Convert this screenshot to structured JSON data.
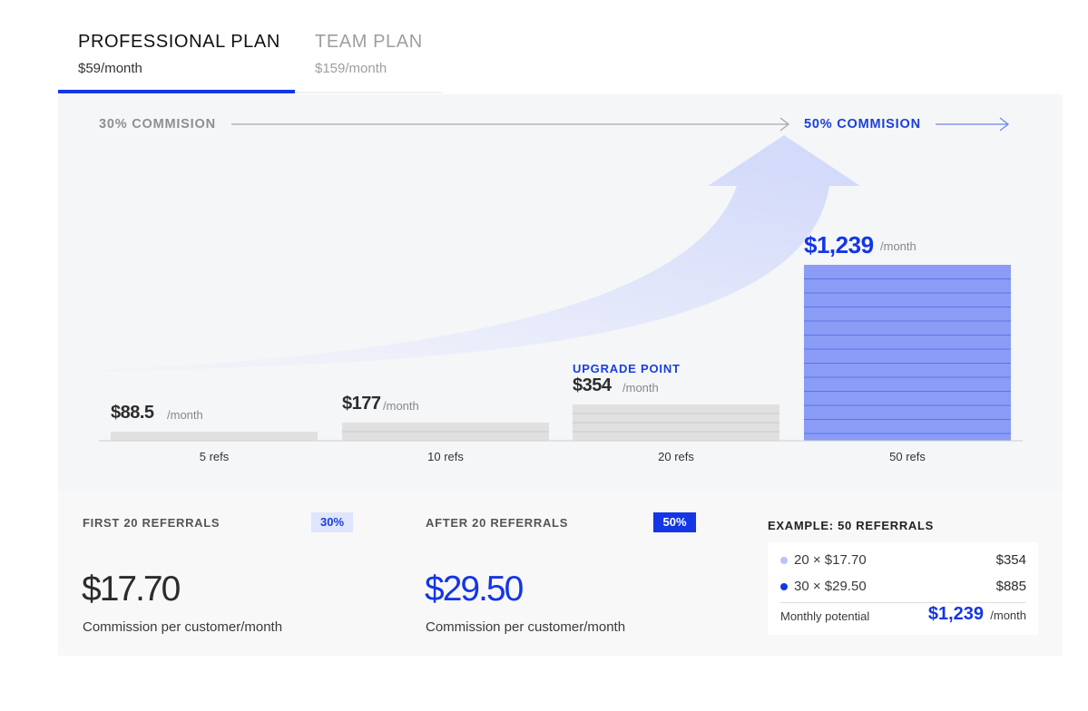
{
  "tabs": [
    {
      "title": "PROFESSIONAL PLAN",
      "price": "$59/month",
      "active": true
    },
    {
      "title": "TEAM PLAN",
      "price": "$159/month",
      "active": false
    }
  ],
  "chart": {
    "commission_start": "30% COMMISION",
    "commission_end": "50% COMMISION",
    "upgrade_label": "UPGRADE POINT",
    "unit": "/month",
    "colors": {
      "accent": "#1436e5",
      "bar_gray": "#e0e0e0",
      "bar_highlight": "#8a9cf5"
    }
  },
  "chart_data": {
    "type": "bar",
    "categories": [
      "5 refs",
      "10 refs",
      "20 refs",
      "50 refs"
    ],
    "values": [
      88.5,
      177,
      354,
      1239
    ],
    "value_labels": [
      "$88.5",
      "$177",
      "$354",
      "$1,239"
    ],
    "highlight_index": 3,
    "annotations": [
      "UPGRADE POINT"
    ],
    "title": "",
    "xlabel": "",
    "ylabel": ""
  },
  "referrals": {
    "first": {
      "title": "FIRST 20 REFERRALS",
      "badge": "30%",
      "amount": "$17.70",
      "caption": "Commission per customer/month"
    },
    "after": {
      "title": "AFTER 20 REFERRALS",
      "badge": "50%",
      "amount": "$29.50",
      "caption": "Commission per customer/month"
    }
  },
  "example": {
    "title": "EXAMPLE: 50 REFERRALS",
    "rows": [
      {
        "label": "20 × $17.70",
        "value": "$354",
        "dot_color": "#b8c3f3"
      },
      {
        "label": "30 × $29.50",
        "value": "$885",
        "dot_color": "#1436e5"
      }
    ],
    "potential_label": "Monthly potential",
    "potential_value": "$1,239",
    "potential_unit": "/month"
  }
}
